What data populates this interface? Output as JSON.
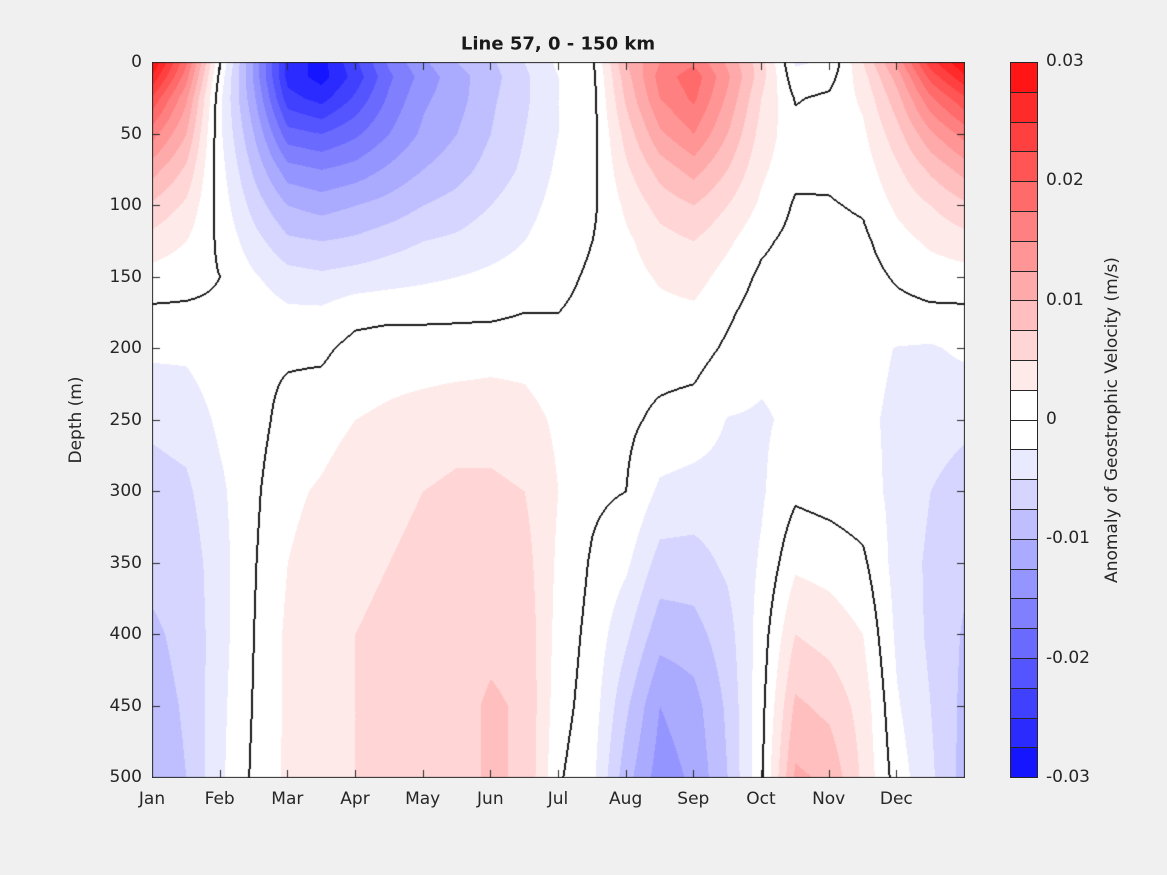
{
  "title": "Line 57, 0 - 150 km",
  "y_axis": {
    "label": "Depth (m)",
    "tick_labels": [
      "0",
      "50",
      "100",
      "150",
      "200",
      "250",
      "300",
      "350",
      "400",
      "450",
      "500"
    ],
    "tick_values": [
      0,
      50,
      100,
      150,
      200,
      250,
      300,
      350,
      400,
      450,
      500
    ]
  },
  "x_axis": {
    "tick_labels": [
      "Jan",
      "Feb",
      "Mar",
      "Apr",
      "May",
      "Jun",
      "Jul",
      "Aug",
      "Sep",
      "Oct",
      "Nov",
      "Dec"
    ],
    "tick_months": [
      1,
      2,
      3,
      4,
      5,
      6,
      7,
      8,
      9,
      10,
      11,
      12
    ]
  },
  "colorbar": {
    "label": "Anomaly of Geostrophic Velocity (m/s)",
    "tick_labels": [
      "0.03",
      "0.02",
      "0.01",
      "0",
      "-0.01",
      "-0.02",
      "-0.03"
    ],
    "tick_values": [
      0.03,
      0.02,
      0.01,
      0,
      -0.01,
      -0.02,
      -0.03
    ],
    "vmin": -0.03,
    "vmax": 0.03,
    "level_step": 0.0025,
    "n_bands": 24,
    "max_positive_color": "#ff1515",
    "zero_color": "#ffffff",
    "max_negative_color": "#1515ff"
  },
  "chart_data": {
    "type": "filled_contour",
    "title": "Line 57, 0 - 150 km",
    "ylabel": "Depth (m)",
    "value_label": "Anomaly of Geostrophic Velocity (m/s)",
    "units": "m/s",
    "contour_level_step": 0.0025,
    "zero_contour_line": true,
    "x_range_months": [
      1,
      13
    ],
    "depth_range_m": [
      0,
      500
    ],
    "x_months": [
      1,
      1.5,
      2,
      2.5,
      3,
      3.5,
      4,
      4.5,
      5,
      5.5,
      6,
      6.5,
      7,
      7.5,
      8,
      8.5,
      9,
      9.5,
      10,
      10.5,
      11,
      11.5,
      12,
      12.5,
      13
    ],
    "depths_m": [
      0,
      10,
      25,
      50,
      75,
      100,
      125,
      150,
      175,
      200,
      250,
      300,
      350,
      400,
      450,
      500
    ],
    "values_by_month": [
      [
        0.03,
        0.027,
        0.022,
        0.016,
        0.011,
        0.007,
        0.004,
        0.0015,
        -0.0005,
        -0.002,
        -0.0045,
        -0.006,
        -0.007,
        -0.0078,
        -0.0082,
        -0.0085
      ],
      [
        0.018,
        0.016,
        0.013,
        0.01,
        0.007,
        0.0045,
        0.0025,
        0.001,
        -0.0005,
        -0.002,
        -0.004,
        -0.0055,
        -0.0065,
        -0.007,
        -0.0073,
        -0.0075
      ],
      [
        0.0,
        -0.001,
        -0.002,
        -0.002,
        -0.0015,
        -0.001,
        -0.0005,
        0.0,
        -0.0005,
        -0.001,
        -0.002,
        -0.003,
        -0.0035,
        -0.0035,
        -0.0032,
        -0.003
      ],
      [
        -0.013,
        -0.013,
        -0.012,
        -0.01,
        -0.008,
        -0.006,
        -0.004,
        -0.0022,
        -0.001,
        -0.0005,
        -0.001,
        -0.0005,
        -0.0002,
        0.0,
        0.0002,
        0.0005
      ],
      [
        -0.026,
        -0.026,
        -0.024,
        -0.019,
        -0.014,
        -0.01,
        -0.007,
        -0.004,
        -0.002,
        -0.0005,
        0.001,
        0.002,
        0.0025,
        0.003,
        0.003,
        0.003
      ],
      [
        -0.0285,
        -0.0285,
        -0.026,
        -0.02,
        -0.015,
        -0.011,
        -0.0075,
        -0.0045,
        -0.002,
        -0.0005,
        0.0015,
        0.0028,
        0.0035,
        0.004,
        0.004,
        0.004
      ],
      [
        -0.023,
        -0.024,
        -0.022,
        -0.018,
        -0.014,
        -0.01,
        -0.007,
        -0.004,
        -0.0008,
        0.0008,
        0.0025,
        0.004,
        0.0045,
        0.005,
        0.005,
        0.005
      ],
      [
        -0.017,
        -0.018,
        -0.017,
        -0.015,
        -0.012,
        -0.009,
        -0.006,
        -0.0035,
        -0.0006,
        0.0012,
        0.003,
        0.0045,
        0.005,
        0.0055,
        0.0055,
        0.0055
      ],
      [
        -0.013,
        -0.014,
        -0.013,
        -0.012,
        -0.01,
        -0.0075,
        -0.005,
        -0.003,
        -0.0006,
        0.0012,
        0.0035,
        0.005,
        0.0055,
        0.006,
        0.006,
        0.006
      ],
      [
        -0.01,
        -0.011,
        -0.011,
        -0.01,
        -0.0085,
        -0.0065,
        -0.0045,
        -0.0025,
        -0.0005,
        0.0012,
        0.004,
        0.0055,
        0.006,
        0.0065,
        0.0068,
        0.0068
      ],
      [
        -0.008,
        -0.0085,
        -0.008,
        -0.0075,
        -0.0065,
        -0.005,
        -0.0035,
        -0.002,
        -0.0005,
        0.0015,
        0.004,
        0.0055,
        0.0065,
        0.007,
        0.0078,
        0.0078
      ],
      [
        -0.005,
        -0.0055,
        -0.0055,
        -0.005,
        -0.0045,
        -0.0035,
        -0.0025,
        -0.0015,
        0.0,
        0.0015,
        0.0035,
        0.005,
        0.006,
        0.0068,
        0.0072,
        0.0072
      ],
      [
        -0.002,
        -0.0025,
        -0.0025,
        -0.0025,
        -0.002,
        -0.0015,
        -0.001,
        -0.0005,
        0.0,
        0.0008,
        0.002,
        0.0025,
        0.002,
        0.0015,
        0.001,
        0.0003
      ],
      [
        -0.0005,
        -0.0008,
        -0.001,
        -0.001,
        -0.0008,
        -0.0005,
        0.0,
        0.0003,
        0.0005,
        0.0008,
        0.001,
        0.0005,
        -0.0003,
        -0.0008,
        -0.0012,
        -0.0018
      ],
      [
        0.01,
        0.009,
        0.008,
        0.006,
        0.0045,
        0.003,
        0.002,
        0.0015,
        0.001,
        0.0008,
        0.0005,
        0.0,
        -0.002,
        -0.0045,
        -0.007,
        -0.009
      ],
      [
        0.015,
        0.016,
        0.015,
        0.012,
        0.0085,
        0.006,
        0.004,
        0.0028,
        0.0018,
        0.001,
        -0.0005,
        -0.003,
        -0.006,
        -0.009,
        -0.0125,
        -0.0138
      ],
      [
        0.017,
        0.019,
        0.018,
        0.015,
        0.011,
        0.0075,
        0.005,
        0.0035,
        0.002,
        0.001,
        -0.001,
        -0.0035,
        -0.006,
        -0.0085,
        -0.011,
        -0.012
      ],
      [
        0.012,
        0.013,
        0.012,
        0.01,
        0.0075,
        0.005,
        0.003,
        0.0015,
        0.0004,
        -0.0004,
        -0.0026,
        -0.0035,
        -0.0045,
        -0.006,
        -0.007,
        -0.0075
      ],
      [
        0.006,
        0.006,
        0.005,
        0.004,
        0.003,
        0.002,
        0.0005,
        -0.0005,
        -0.0012,
        -0.0018,
        -0.0028,
        -0.0028,
        -0.0022,
        -0.0013,
        -0.0008,
        -0.0004
      ],
      [
        -0.0028,
        -0.0018,
        -0.0002,
        0.0008,
        0.0006,
        -0.0003,
        -0.0008,
        -0.0012,
        -0.0015,
        -0.0018,
        -0.002,
        -0.0005,
        0.002,
        0.005,
        0.008,
        0.0105
      ],
      [
        -0.0022,
        -0.001,
        0.0005,
        0.001,
        0.0005,
        -0.0002,
        -0.0008,
        -0.0012,
        -0.0016,
        -0.0018,
        -0.002,
        -0.001,
        0.0015,
        0.004,
        0.0068,
        0.0095
      ],
      [
        0.005,
        0.004,
        0.003,
        0.002,
        0.0012,
        0.0003,
        -0.0005,
        -0.001,
        -0.0014,
        -0.0017,
        -0.002,
        -0.0015,
        0.0005,
        0.0025,
        0.004,
        0.0045
      ],
      [
        0.013,
        0.011,
        0.009,
        0.0065,
        0.0045,
        0.003,
        0.0015,
        0.0003,
        -0.0008,
        -0.0026,
        -0.003,
        -0.0032,
        -0.0035,
        -0.003,
        -0.0022,
        -0.0012
      ],
      [
        0.024,
        0.021,
        0.017,
        0.012,
        0.008,
        0.005,
        0.003,
        0.0012,
        -0.0005,
        -0.0028,
        -0.004,
        -0.005,
        -0.0055,
        -0.0055,
        -0.005,
        -0.0045
      ],
      [
        0.03,
        0.027,
        0.022,
        0.016,
        0.011,
        0.007,
        0.004,
        0.0015,
        -0.0005,
        -0.002,
        -0.0045,
        -0.006,
        -0.007,
        -0.0078,
        -0.0082,
        -0.0085
      ]
    ]
  }
}
